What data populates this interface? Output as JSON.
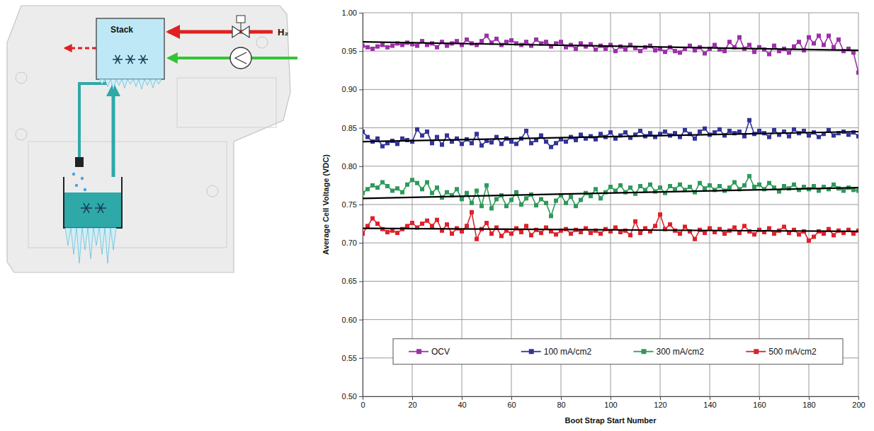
{
  "diagram": {
    "stack_label": "Stack",
    "fuel_label": "H₂"
  },
  "chart_data": {
    "type": "line",
    "x_label": "Boot Strap Start Number",
    "y_label": "Average Cell Voltage (VDC)",
    "x": [
      0,
      2,
      4,
      6,
      8,
      10,
      12,
      14,
      16,
      18,
      20,
      22,
      24,
      26,
      28,
      30,
      32,
      34,
      36,
      38,
      40,
      42,
      44,
      46,
      48,
      50,
      52,
      54,
      56,
      58,
      60,
      62,
      64,
      66,
      68,
      70,
      72,
      74,
      76,
      78,
      80,
      82,
      84,
      86,
      88,
      90,
      92,
      94,
      96,
      98,
      100,
      102,
      104,
      106,
      108,
      110,
      112,
      114,
      116,
      118,
      120,
      122,
      124,
      126,
      128,
      130,
      132,
      134,
      136,
      138,
      140,
      142,
      144,
      146,
      148,
      150,
      152,
      154,
      156,
      158,
      160,
      162,
      164,
      166,
      168,
      170,
      172,
      174,
      176,
      178,
      180,
      182,
      184,
      186,
      188,
      190,
      192,
      194,
      196,
      198,
      200
    ],
    "xlim": [
      0,
      200
    ],
    "xticks": [
      0,
      20,
      40,
      60,
      80,
      100,
      120,
      140,
      160,
      180,
      200
    ],
    "ylim": [
      0.5,
      1.0
    ],
    "yticks": [
      {
        "value": 0.5,
        "label": "0.50"
      },
      0.55,
      {
        "value": 0.6,
        "label": "0.60"
      },
      0.65,
      {
        "value": 0.7,
        "label": "0.70"
      },
      0.75,
      {
        "value": 0.8,
        "label": "0.80"
      },
      0.85,
      {
        "value": 0.9,
        "label": "0.90"
      },
      0.95,
      {
        "value": 1.0,
        "label": "1.00"
      }
    ],
    "grid": true,
    "legend": "bottom",
    "marker": "square",
    "series": [
      {
        "name": "OCV",
        "color": "#9B30A8",
        "values": [
          0.957,
          0.955,
          0.953,
          0.956,
          0.958,
          0.955,
          0.957,
          0.96,
          0.958,
          0.961,
          0.959,
          0.957,
          0.963,
          0.958,
          0.96,
          0.955,
          0.962,
          0.957,
          0.96,
          0.963,
          0.958,
          0.965,
          0.96,
          0.958,
          0.963,
          0.97,
          0.961,
          0.966,
          0.958,
          0.962,
          0.964,
          0.96,
          0.958,
          0.962,
          0.957,
          0.965,
          0.96,
          0.962,
          0.956,
          0.96,
          0.962,
          0.955,
          0.958,
          0.953,
          0.96,
          0.956,
          0.959,
          0.952,
          0.957,
          0.953,
          0.958,
          0.95,
          0.956,
          0.952,
          0.958,
          0.954,
          0.95,
          0.955,
          0.957,
          0.951,
          0.953,
          0.949,
          0.955,
          0.95,
          0.948,
          0.953,
          0.957,
          0.951,
          0.955,
          0.947,
          0.953,
          0.958,
          0.952,
          0.95,
          0.962,
          0.955,
          0.968,
          0.953,
          0.958,
          0.949,
          0.955,
          0.952,
          0.946,
          0.957,
          0.95,
          0.953,
          0.948,
          0.956,
          0.962,
          0.951,
          0.968,
          0.96,
          0.97,
          0.958,
          0.97,
          0.955,
          0.965,
          0.95,
          0.953,
          0.948,
          0.922
        ],
        "trend": {
          "x": [
            0,
            200
          ],
          "values": [
            0.962,
            0.951
          ]
        }
      },
      {
        "name": "100 mA/cm2",
        "color": "#333399",
        "values": [
          0.845,
          0.838,
          0.832,
          0.836,
          0.826,
          0.83,
          0.833,
          0.829,
          0.836,
          0.834,
          0.832,
          0.848,
          0.84,
          0.845,
          0.83,
          0.838,
          0.828,
          0.84,
          0.832,
          0.836,
          0.829,
          0.835,
          0.83,
          0.842,
          0.827,
          0.833,
          0.831,
          0.838,
          0.829,
          0.836,
          0.832,
          0.829,
          0.836,
          0.846,
          0.83,
          0.834,
          0.84,
          0.832,
          0.825,
          0.83,
          0.835,
          0.832,
          0.838,
          0.834,
          0.841,
          0.836,
          0.839,
          0.835,
          0.842,
          0.838,
          0.844,
          0.836,
          0.84,
          0.844,
          0.837,
          0.841,
          0.846,
          0.839,
          0.843,
          0.838,
          0.842,
          0.845,
          0.84,
          0.843,
          0.838,
          0.847,
          0.842,
          0.836,
          0.845,
          0.849,
          0.841,
          0.844,
          0.848,
          0.84,
          0.846,
          0.843,
          0.845,
          0.839,
          0.86,
          0.842,
          0.846,
          0.843,
          0.838,
          0.847,
          0.841,
          0.845,
          0.839,
          0.848,
          0.843,
          0.846,
          0.84,
          0.844,
          0.838,
          0.842,
          0.847,
          0.84,
          0.843,
          0.845,
          0.841,
          0.844,
          0.839
        ],
        "trend": {
          "x": [
            0,
            200
          ],
          "values": [
            0.832,
            0.845
          ]
        }
      },
      {
        "name": "300 mA/cm2",
        "color": "#2E9A5A",
        "values": [
          0.765,
          0.77,
          0.775,
          0.772,
          0.779,
          0.774,
          0.768,
          0.771,
          0.766,
          0.776,
          0.782,
          0.778,
          0.77,
          0.779,
          0.765,
          0.772,
          0.759,
          0.766,
          0.762,
          0.77,
          0.757,
          0.765,
          0.752,
          0.768,
          0.748,
          0.775,
          0.745,
          0.757,
          0.762,
          0.748,
          0.756,
          0.766,
          0.75,
          0.758,
          0.763,
          0.749,
          0.757,
          0.752,
          0.735,
          0.755,
          0.762,
          0.752,
          0.76,
          0.748,
          0.756,
          0.765,
          0.761,
          0.77,
          0.758,
          0.766,
          0.773,
          0.768,
          0.775,
          0.766,
          0.772,
          0.764,
          0.774,
          0.769,
          0.776,
          0.767,
          0.772,
          0.765,
          0.774,
          0.77,
          0.776,
          0.769,
          0.773,
          0.766,
          0.778,
          0.771,
          0.775,
          0.769,
          0.774,
          0.768,
          0.772,
          0.779,
          0.77,
          0.775,
          0.787,
          0.773,
          0.776,
          0.77,
          0.778,
          0.772,
          0.767,
          0.774,
          0.771,
          0.776,
          0.769,
          0.773,
          0.77,
          0.774,
          0.768,
          0.773,
          0.77,
          0.776,
          0.771,
          0.768,
          0.772,
          0.769,
          0.768
        ],
        "trend": {
          "x": [
            0,
            200
          ],
          "values": [
            0.758,
            0.772
          ]
        }
      },
      {
        "name": "500 mA/cm2",
        "color": "#E0202A",
        "values": [
          0.712,
          0.722,
          0.732,
          0.725,
          0.718,
          0.714,
          0.716,
          0.713,
          0.718,
          0.722,
          0.726,
          0.72,
          0.725,
          0.729,
          0.722,
          0.73,
          0.716,
          0.724,
          0.712,
          0.719,
          0.715,
          0.722,
          0.74,
          0.705,
          0.718,
          0.726,
          0.712,
          0.72,
          0.709,
          0.716,
          0.712,
          0.719,
          0.714,
          0.722,
          0.71,
          0.717,
          0.713,
          0.72,
          0.715,
          0.711,
          0.716,
          0.718,
          0.712,
          0.717,
          0.714,
          0.719,
          0.713,
          0.716,
          0.712,
          0.718,
          0.715,
          0.72,
          0.714,
          0.716,
          0.71,
          0.728,
          0.713,
          0.719,
          0.715,
          0.722,
          0.737,
          0.718,
          0.724,
          0.716,
          0.712,
          0.721,
          0.715,
          0.705,
          0.717,
          0.713,
          0.719,
          0.714,
          0.718,
          0.712,
          0.716,
          0.72,
          0.713,
          0.722,
          0.715,
          0.711,
          0.717,
          0.714,
          0.719,
          0.712,
          0.716,
          0.721,
          0.713,
          0.717,
          0.711,
          0.715,
          0.703,
          0.708,
          0.715,
          0.712,
          0.718,
          0.71,
          0.716,
          0.713,
          0.717,
          0.712,
          0.716
        ],
        "trend": {
          "x": [
            0,
            200
          ],
          "values": [
            0.719,
            0.715
          ]
        }
      }
    ]
  }
}
